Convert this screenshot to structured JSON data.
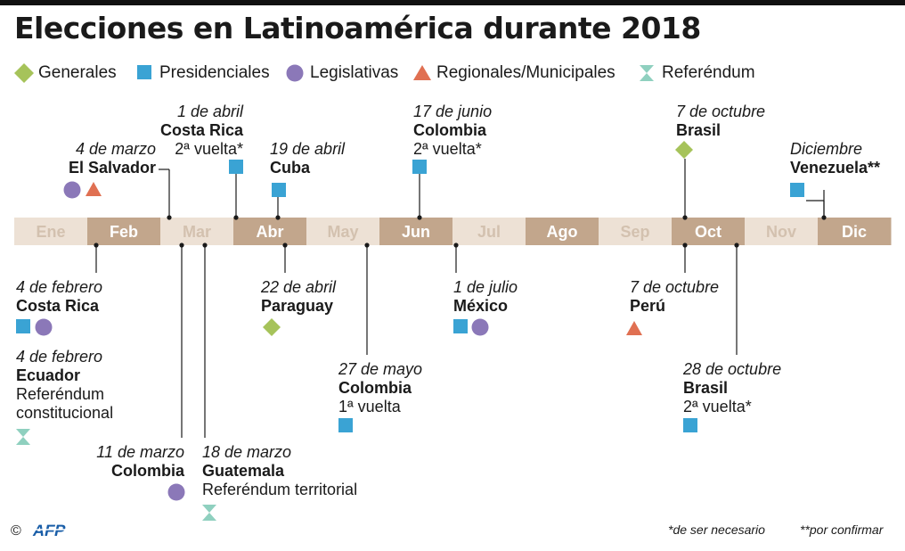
{
  "title": "Elecciones en Latinoamérica durante 2018",
  "legend": [
    {
      "type": "generales",
      "label": "Generales",
      "shape": "diamond",
      "color": "#a6c35a"
    },
    {
      "type": "presidenciales",
      "label": "Presidenciales",
      "shape": "square",
      "color": "#3aa3d4"
    },
    {
      "type": "legislativas",
      "label": "Legislativas",
      "shape": "circle",
      "color": "#8b78b8"
    },
    {
      "type": "regionales",
      "label": "Regionales/Municipales",
      "shape": "triangle",
      "color": "#e07052"
    },
    {
      "type": "referendum",
      "label": "Referéndum",
      "shape": "hourglass",
      "color": "#8fd0bf"
    }
  ],
  "months": [
    {
      "label": "Ene",
      "active": false
    },
    {
      "label": "Feb",
      "active": true
    },
    {
      "label": "Mar",
      "active": false
    },
    {
      "label": "Abr",
      "active": true
    },
    {
      "label": "May",
      "active": false
    },
    {
      "label": "Jun",
      "active": true
    },
    {
      "label": "Jul",
      "active": false
    },
    {
      "label": "Ago",
      "active": true
    },
    {
      "label": "Sep",
      "active": false
    },
    {
      "label": "Oct",
      "active": true
    },
    {
      "label": "Nov",
      "active": false
    },
    {
      "label": "Dic",
      "active": true
    }
  ],
  "month_colors": {
    "active_bg": "#c2a68c",
    "inactive_bg": "#ede1d5",
    "active_text": "#ffffff",
    "inactive_text": "#d3c1af"
  },
  "chart_data": {
    "type": "timeline",
    "year": 2018,
    "events": [
      {
        "date_label": "4 de marzo",
        "month": 3,
        "day": 4,
        "country": "El Salvador",
        "note": "",
        "types": [
          "legislativas",
          "regionales"
        ],
        "position": "above"
      },
      {
        "date_label": "1 de abril",
        "month": 4,
        "day": 1,
        "country": "Costa Rica",
        "note": "2ª vuelta*",
        "types": [
          "presidenciales"
        ],
        "position": "above"
      },
      {
        "date_label": "19 de abril",
        "month": 4,
        "day": 19,
        "country": "Cuba",
        "note": "",
        "types": [
          "presidenciales"
        ],
        "position": "above"
      },
      {
        "date_label": "17 de junio",
        "month": 6,
        "day": 17,
        "country": "Colombia",
        "note": "2ª vuelta*",
        "types": [
          "presidenciales"
        ],
        "position": "above"
      },
      {
        "date_label": "7 de octubre",
        "month": 10,
        "day": 7,
        "country": "Brasil",
        "note": "",
        "types": [
          "generales"
        ],
        "position": "above"
      },
      {
        "date_label": "Diciembre",
        "month": 12,
        "day": 1,
        "country": "Venezuela**",
        "note": "",
        "types": [
          "presidenciales"
        ],
        "position": "above"
      },
      {
        "date_label": "4 de febrero",
        "month": 2,
        "day": 4,
        "country": "Costa Rica",
        "note": "",
        "types": [
          "presidenciales",
          "legislativas"
        ],
        "position": "below"
      },
      {
        "date_label": "4 de febrero",
        "month": 2,
        "day": 4,
        "country": "Ecuador",
        "note": "Referéndum constitucional",
        "types": [
          "referendum"
        ],
        "position": "below"
      },
      {
        "date_label": "11 de marzo",
        "month": 3,
        "day": 11,
        "country": "Colombia",
        "note": "",
        "types": [
          "legislativas"
        ],
        "position": "below"
      },
      {
        "date_label": "18 de marzo",
        "month": 3,
        "day": 18,
        "country": "Guatemala",
        "note": "Referéndum territorial",
        "types": [
          "referendum"
        ],
        "position": "below"
      },
      {
        "date_label": "22 de abril",
        "month": 4,
        "day": 22,
        "country": "Paraguay",
        "note": "",
        "types": [
          "generales"
        ],
        "position": "below"
      },
      {
        "date_label": "27 de mayo",
        "month": 5,
        "day": 27,
        "country": "Colombia",
        "note": "1ª vuelta",
        "types": [
          "presidenciales"
        ],
        "position": "below"
      },
      {
        "date_label": "1 de julio",
        "month": 7,
        "day": 1,
        "country": "México",
        "note": "",
        "types": [
          "presidenciales",
          "legislativas"
        ],
        "position": "below"
      },
      {
        "date_label": "7 de octubre",
        "month": 10,
        "day": 7,
        "country": "Perú",
        "note": "",
        "types": [
          "regionales"
        ],
        "position": "below"
      },
      {
        "date_label": "28 de octubre",
        "month": 10,
        "day": 28,
        "country": "Brasil",
        "note": "2ª vuelta*",
        "types": [
          "presidenciales"
        ],
        "position": "below"
      }
    ]
  },
  "footer": {
    "copyright": "©",
    "logo_text": "AFP",
    "footnote1": "*de ser necesario",
    "footnote2": "**por confirmar"
  }
}
